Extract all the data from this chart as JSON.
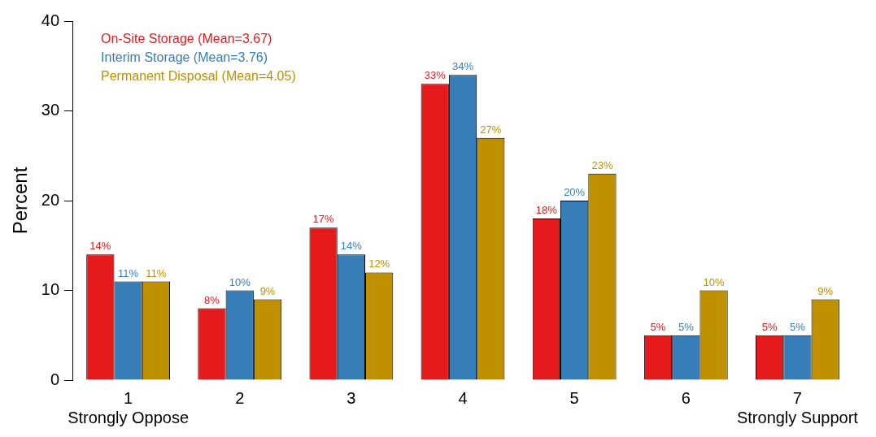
{
  "chart_data": {
    "type": "bar",
    "ylabel": "Percent",
    "categories": [
      "1\nStrongly Oppose",
      "2",
      "3",
      "4",
      "5",
      "6",
      "7\nStrongly Support"
    ],
    "series": [
      {
        "name": "On-Site Storage (Mean=3.67)",
        "color": "#e41a1c",
        "values": [
          14,
          8,
          17,
          33,
          18,
          5,
          5
        ],
        "value_labels": [
          "14%",
          "8%",
          "17%",
          "33%",
          "18%",
          "5%",
          "5%"
        ]
      },
      {
        "name": "Interim Storage (Mean=3.76)",
        "color": "#377eb8",
        "values": [
          11,
          10,
          14,
          34,
          20,
          5,
          5
        ],
        "value_labels": [
          "11%",
          "10%",
          "14%",
          "34%",
          "20%",
          "5%",
          "5%"
        ]
      },
      {
        "name": "Permanent Disposal (Mean=4.05)",
        "color": "#bf9000",
        "values": [
          11,
          9,
          12,
          27,
          23,
          10,
          9
        ],
        "value_labels": [
          "11%",
          "9%",
          "12%",
          "27%",
          "23%",
          "10%",
          "9%"
        ]
      }
    ],
    "ylim": [
      0,
      40
    ],
    "yticks": [
      0,
      10,
      20,
      30,
      40
    ],
    "grid": false,
    "legend": "top left"
  }
}
